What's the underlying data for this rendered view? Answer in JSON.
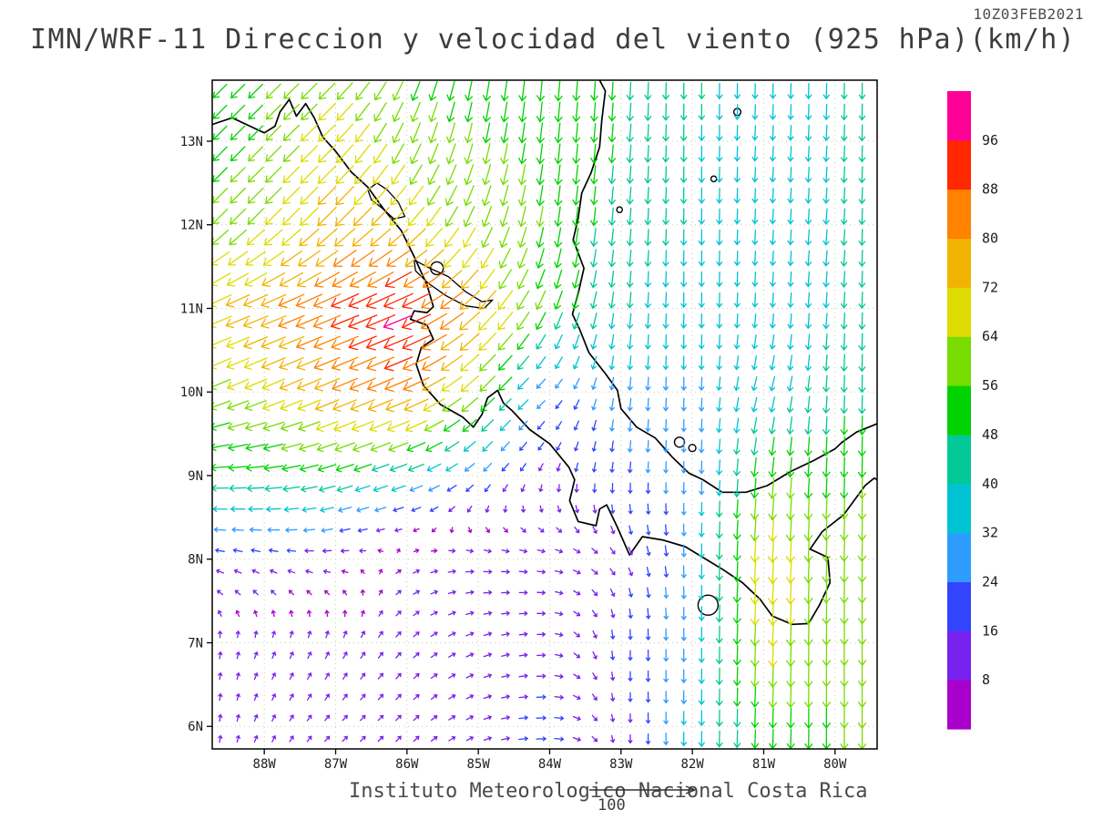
{
  "header": {
    "timestamp": "10Z03FEB2021",
    "title": "IMN/WRF-11 Direccion y velocidad del viento (925 hPa)(km/h)"
  },
  "footer": {
    "credit": "Instituto Meteorologico Nacional Costa Rica",
    "reference_value": "100"
  },
  "chart_data": {
    "type": "vector_field",
    "model": "IMN/WRF-11",
    "variable": "Direccion y velocidad del viento",
    "level": "925 hPa",
    "units": "km/h",
    "valid_time": "10Z03FEB2021",
    "title": "IMN/WRF-11 Direccion y velocidad del viento (925 hPa)(km/h)",
    "reference_vector": {
      "value": 100,
      "units": "km/h"
    },
    "extent": {
      "lon_min": -88.73,
      "lon_max": -79.41,
      "lat_min": 5.73,
      "lat_max": 13.73
    },
    "axes": {
      "lon_tick_values": [
        -88,
        -87,
        -86,
        -85,
        -84,
        -83,
        -82,
        -81,
        -80
      ],
      "lon_tick_labels": [
        "88W",
        "87W",
        "86W",
        "85W",
        "84W",
        "83W",
        "82W",
        "81W",
        "80W"
      ],
      "lat_tick_values": [
        6,
        7,
        8,
        9,
        10,
        11,
        12,
        13
      ],
      "lat_tick_labels": [
        "6N",
        "7N",
        "8N",
        "9N",
        "10N",
        "11N",
        "12N",
        "13N"
      ],
      "grid": "dotted"
    },
    "legend": {
      "units": "km/h",
      "levels": [
        8,
        16,
        24,
        32,
        40,
        48,
        56,
        64,
        72,
        80,
        88,
        96
      ],
      "colors": [
        "#aa00cc",
        "#7722ee",
        "#3344ff",
        "#2e9cff",
        "#00c3d2",
        "#00c896",
        "#00d200",
        "#78dc00",
        "#dcdc00",
        "#f0b400",
        "#ff8200",
        "#ff2800",
        "#ff0096"
      ]
    },
    "arrow_spacing_deg": 0.25,
    "wind_grid": {
      "lons": [
        -89,
        -88,
        -87,
        -86,
        -85,
        -84,
        -83,
        -82,
        -81,
        -80,
        -79
      ],
      "lats": [
        6,
        7,
        8,
        9,
        10,
        11,
        12,
        13,
        14
      ],
      "uv": [
        [
          [
            0,
            10
          ],
          [
            4,
            9
          ],
          [
            7,
            7
          ],
          [
            8,
            8
          ],
          [
            11,
            5
          ],
          [
            20,
            0
          ],
          [
            0,
            -12
          ],
          [
            0,
            -36
          ],
          [
            -2,
            -52
          ],
          [
            0,
            -56
          ],
          [
            0,
            -56
          ]
        ],
        [
          [
            0,
            10
          ],
          [
            4,
            9
          ],
          [
            5,
            11
          ],
          [
            8,
            8
          ],
          [
            13,
            5
          ],
          [
            14,
            0
          ],
          [
            0,
            -20
          ],
          [
            0,
            -30
          ],
          [
            -3,
            -68
          ],
          [
            0,
            -56
          ],
          [
            2,
            -56
          ]
        ],
        [
          [
            -14,
            3
          ],
          [
            -13,
            4
          ],
          [
            -12,
            0
          ],
          [
            8,
            4
          ],
          [
            14,
            -1
          ],
          [
            14,
            -2
          ],
          [
            8,
            -10
          ],
          [
            0,
            -30
          ],
          [
            -4,
            -70
          ],
          [
            -2,
            -58
          ],
          [
            0,
            -60
          ]
        ],
        [
          [
            -46,
            0
          ],
          [
            -50,
            -4
          ],
          [
            -45,
            -14
          ],
          [
            -39,
            -14
          ],
          [
            -16,
            -15
          ],
          [
            -4,
            -12
          ],
          [
            -2,
            -22
          ],
          [
            0,
            -26
          ],
          [
            -6,
            -56
          ],
          [
            -2,
            -54
          ],
          [
            0,
            -62
          ]
        ],
        [
          [
            -55,
            -22
          ],
          [
            -62,
            -26
          ],
          [
            -72,
            -30
          ],
          [
            -79,
            -33
          ],
          [
            -44,
            -44
          ],
          [
            -16,
            -15
          ],
          [
            -3,
            -30
          ],
          [
            0,
            -30
          ],
          [
            -10,
            -34
          ],
          [
            -2,
            -44
          ],
          [
            0,
            -50
          ]
        ],
        [
          [
            -64,
            -27
          ],
          [
            -74,
            -30
          ],
          [
            -83,
            -34
          ],
          [
            -92,
            -38
          ],
          [
            -55,
            -55
          ],
          [
            -21,
            -50
          ],
          [
            -4,
            -40
          ],
          [
            0,
            -36
          ],
          [
            -2,
            -34
          ],
          [
            -3,
            -40
          ],
          [
            0,
            -46
          ]
        ],
        [
          [
            -41,
            -41
          ],
          [
            -45,
            -45
          ],
          [
            -55,
            -55
          ],
          [
            -51,
            -51
          ],
          [
            -24,
            -57
          ],
          [
            -8,
            -55
          ],
          [
            -4,
            -44
          ],
          [
            0,
            -40
          ],
          [
            -2,
            -36
          ],
          [
            -3,
            -40
          ],
          [
            0,
            -44
          ]
        ],
        [
          [
            -35,
            -35
          ],
          [
            -40,
            -40
          ],
          [
            -49,
            -49
          ],
          [
            -24,
            -57
          ],
          [
            -12,
            -55
          ],
          [
            -6,
            -55
          ],
          [
            -4,
            -48
          ],
          [
            0,
            -40
          ],
          [
            -2,
            -36
          ],
          [
            -2,
            -40
          ],
          [
            0,
            -44
          ]
        ],
        [
          [
            -34,
            -34
          ],
          [
            -38,
            -38
          ],
          [
            -44,
            -44
          ],
          [
            -20,
            -48
          ],
          [
            -8,
            -51
          ],
          [
            -4,
            -54
          ],
          [
            -2,
            -48
          ],
          [
            0,
            -42
          ],
          [
            0,
            -38
          ],
          [
            0,
            -40
          ],
          [
            0,
            -42
          ]
        ]
      ]
    },
    "coastlines": [
      [
        [
          -88.73,
          13.2
        ],
        [
          -88.45,
          13.28
        ],
        [
          -88.2,
          13.18
        ],
        [
          -88.0,
          13.1
        ],
        [
          -87.85,
          13.18
        ],
        [
          -87.78,
          13.35
        ],
        [
          -87.65,
          13.5
        ],
        [
          -87.55,
          13.3
        ],
        [
          -87.42,
          13.45
        ],
        [
          -87.3,
          13.28
        ],
        [
          -87.18,
          13.05
        ],
        [
          -87.0,
          12.88
        ],
        [
          -86.78,
          12.63
        ],
        [
          -86.55,
          12.45
        ],
        [
          -86.32,
          12.18
        ],
        [
          -86.08,
          11.93
        ],
        [
          -85.9,
          11.62
        ],
        [
          -85.72,
          11.28
        ],
        [
          -85.63,
          11.02
        ],
        [
          -85.72,
          10.95
        ],
        [
          -85.9,
          10.97
        ],
        [
          -85.95,
          10.87
        ],
        [
          -85.72,
          10.8
        ],
        [
          -85.63,
          10.63
        ],
        [
          -85.8,
          10.53
        ],
        [
          -85.87,
          10.33
        ],
        [
          -85.77,
          10.08
        ],
        [
          -85.53,
          9.85
        ],
        [
          -85.22,
          9.7
        ],
        [
          -85.07,
          9.58
        ],
        [
          -84.95,
          9.73
        ],
        [
          -84.87,
          9.93
        ],
        [
          -84.73,
          10.02
        ],
        [
          -84.65,
          9.87
        ],
        [
          -84.52,
          9.77
        ],
        [
          -84.28,
          9.55
        ],
        [
          -84.0,
          9.38
        ],
        [
          -83.73,
          9.1
        ],
        [
          -83.65,
          8.95
        ],
        [
          -83.72,
          8.7
        ],
        [
          -83.6,
          8.45
        ],
        [
          -83.35,
          8.4
        ],
        [
          -83.3,
          8.6
        ],
        [
          -83.2,
          8.65
        ],
        [
          -83.05,
          8.38
        ],
        [
          -82.88,
          8.05
        ],
        [
          -82.7,
          8.27
        ],
        [
          -82.42,
          8.23
        ],
        [
          -82.1,
          8.15
        ],
        [
          -81.85,
          8.02
        ],
        [
          -81.58,
          7.88
        ],
        [
          -81.3,
          7.72
        ],
        [
          -81.05,
          7.52
        ],
        [
          -80.88,
          7.32
        ],
        [
          -80.6,
          7.22
        ],
        [
          -80.37,
          7.23
        ],
        [
          -80.22,
          7.45
        ],
        [
          -80.07,
          7.72
        ],
        [
          -80.1,
          8.02
        ],
        [
          -80.35,
          8.12
        ],
        [
          -80.18,
          8.33
        ],
        [
          -79.88,
          8.53
        ],
        [
          -79.58,
          8.88
        ],
        [
          -79.45,
          8.97
        ],
        [
          -79.41,
          8.95
        ]
      ],
      [
        [
          -79.41,
          9.62
        ],
        [
          -79.7,
          9.52
        ],
        [
          -79.9,
          9.4
        ],
        [
          -80.0,
          9.32
        ],
        [
          -80.3,
          9.18
        ],
        [
          -80.62,
          9.05
        ],
        [
          -80.95,
          8.88
        ],
        [
          -81.25,
          8.8
        ],
        [
          -81.58,
          8.8
        ],
        [
          -81.85,
          8.95
        ],
        [
          -82.05,
          9.03
        ],
        [
          -82.28,
          9.22
        ],
        [
          -82.52,
          9.45
        ],
        [
          -82.78,
          9.58
        ],
        [
          -83.0,
          9.8
        ],
        [
          -83.05,
          10.02
        ],
        [
          -83.22,
          10.22
        ],
        [
          -83.45,
          10.47
        ],
        [
          -83.58,
          10.75
        ],
        [
          -83.68,
          10.93
        ],
        [
          -83.6,
          11.18
        ],
        [
          -83.52,
          11.48
        ],
        [
          -83.67,
          11.82
        ],
        [
          -83.6,
          12.08
        ],
        [
          -83.55,
          12.38
        ],
        [
          -83.42,
          12.62
        ],
        [
          -83.3,
          12.93
        ],
        [
          -83.27,
          13.25
        ],
        [
          -83.22,
          13.6
        ],
        [
          -83.3,
          13.73
        ]
      ]
    ],
    "lakes": [
      [
        [
          -86.55,
          12.42
        ],
        [
          -86.42,
          12.5
        ],
        [
          -86.28,
          12.42
        ],
        [
          -86.12,
          12.27
        ],
        [
          -86.03,
          12.1
        ],
        [
          -86.18,
          12.07
        ],
        [
          -86.35,
          12.2
        ],
        [
          -86.5,
          12.3
        ]
      ],
      [
        [
          -85.9,
          11.58
        ],
        [
          -85.68,
          11.48
        ],
        [
          -85.42,
          11.38
        ],
        [
          -85.18,
          11.2
        ],
        [
          -84.95,
          11.08
        ],
        [
          -84.8,
          11.1
        ],
        [
          -84.92,
          11.0
        ],
        [
          -85.18,
          11.03
        ],
        [
          -85.45,
          11.15
        ],
        [
          -85.7,
          11.3
        ],
        [
          -85.88,
          11.45
        ]
      ]
    ],
    "islands": [
      {
        "name": "ometepe",
        "lon": -85.58,
        "lat": 11.48,
        "r": 0.09
      },
      {
        "name": "coiba",
        "lon": -81.78,
        "lat": 7.45,
        "r": 0.14
      },
      {
        "name": "bocas-1",
        "lon": -82.18,
        "lat": 9.4,
        "r": 0.07
      },
      {
        "name": "bocas-2",
        "lon": -82.0,
        "lat": 9.33,
        "r": 0.05
      },
      {
        "name": "corn-islands",
        "lon": -83.02,
        "lat": 12.18,
        "r": 0.04
      },
      {
        "name": "providencia",
        "lon": -81.37,
        "lat": 13.35,
        "r": 0.05
      },
      {
        "name": "san-andres",
        "lon": -81.7,
        "lat": 12.55,
        "r": 0.04
      }
    ]
  }
}
